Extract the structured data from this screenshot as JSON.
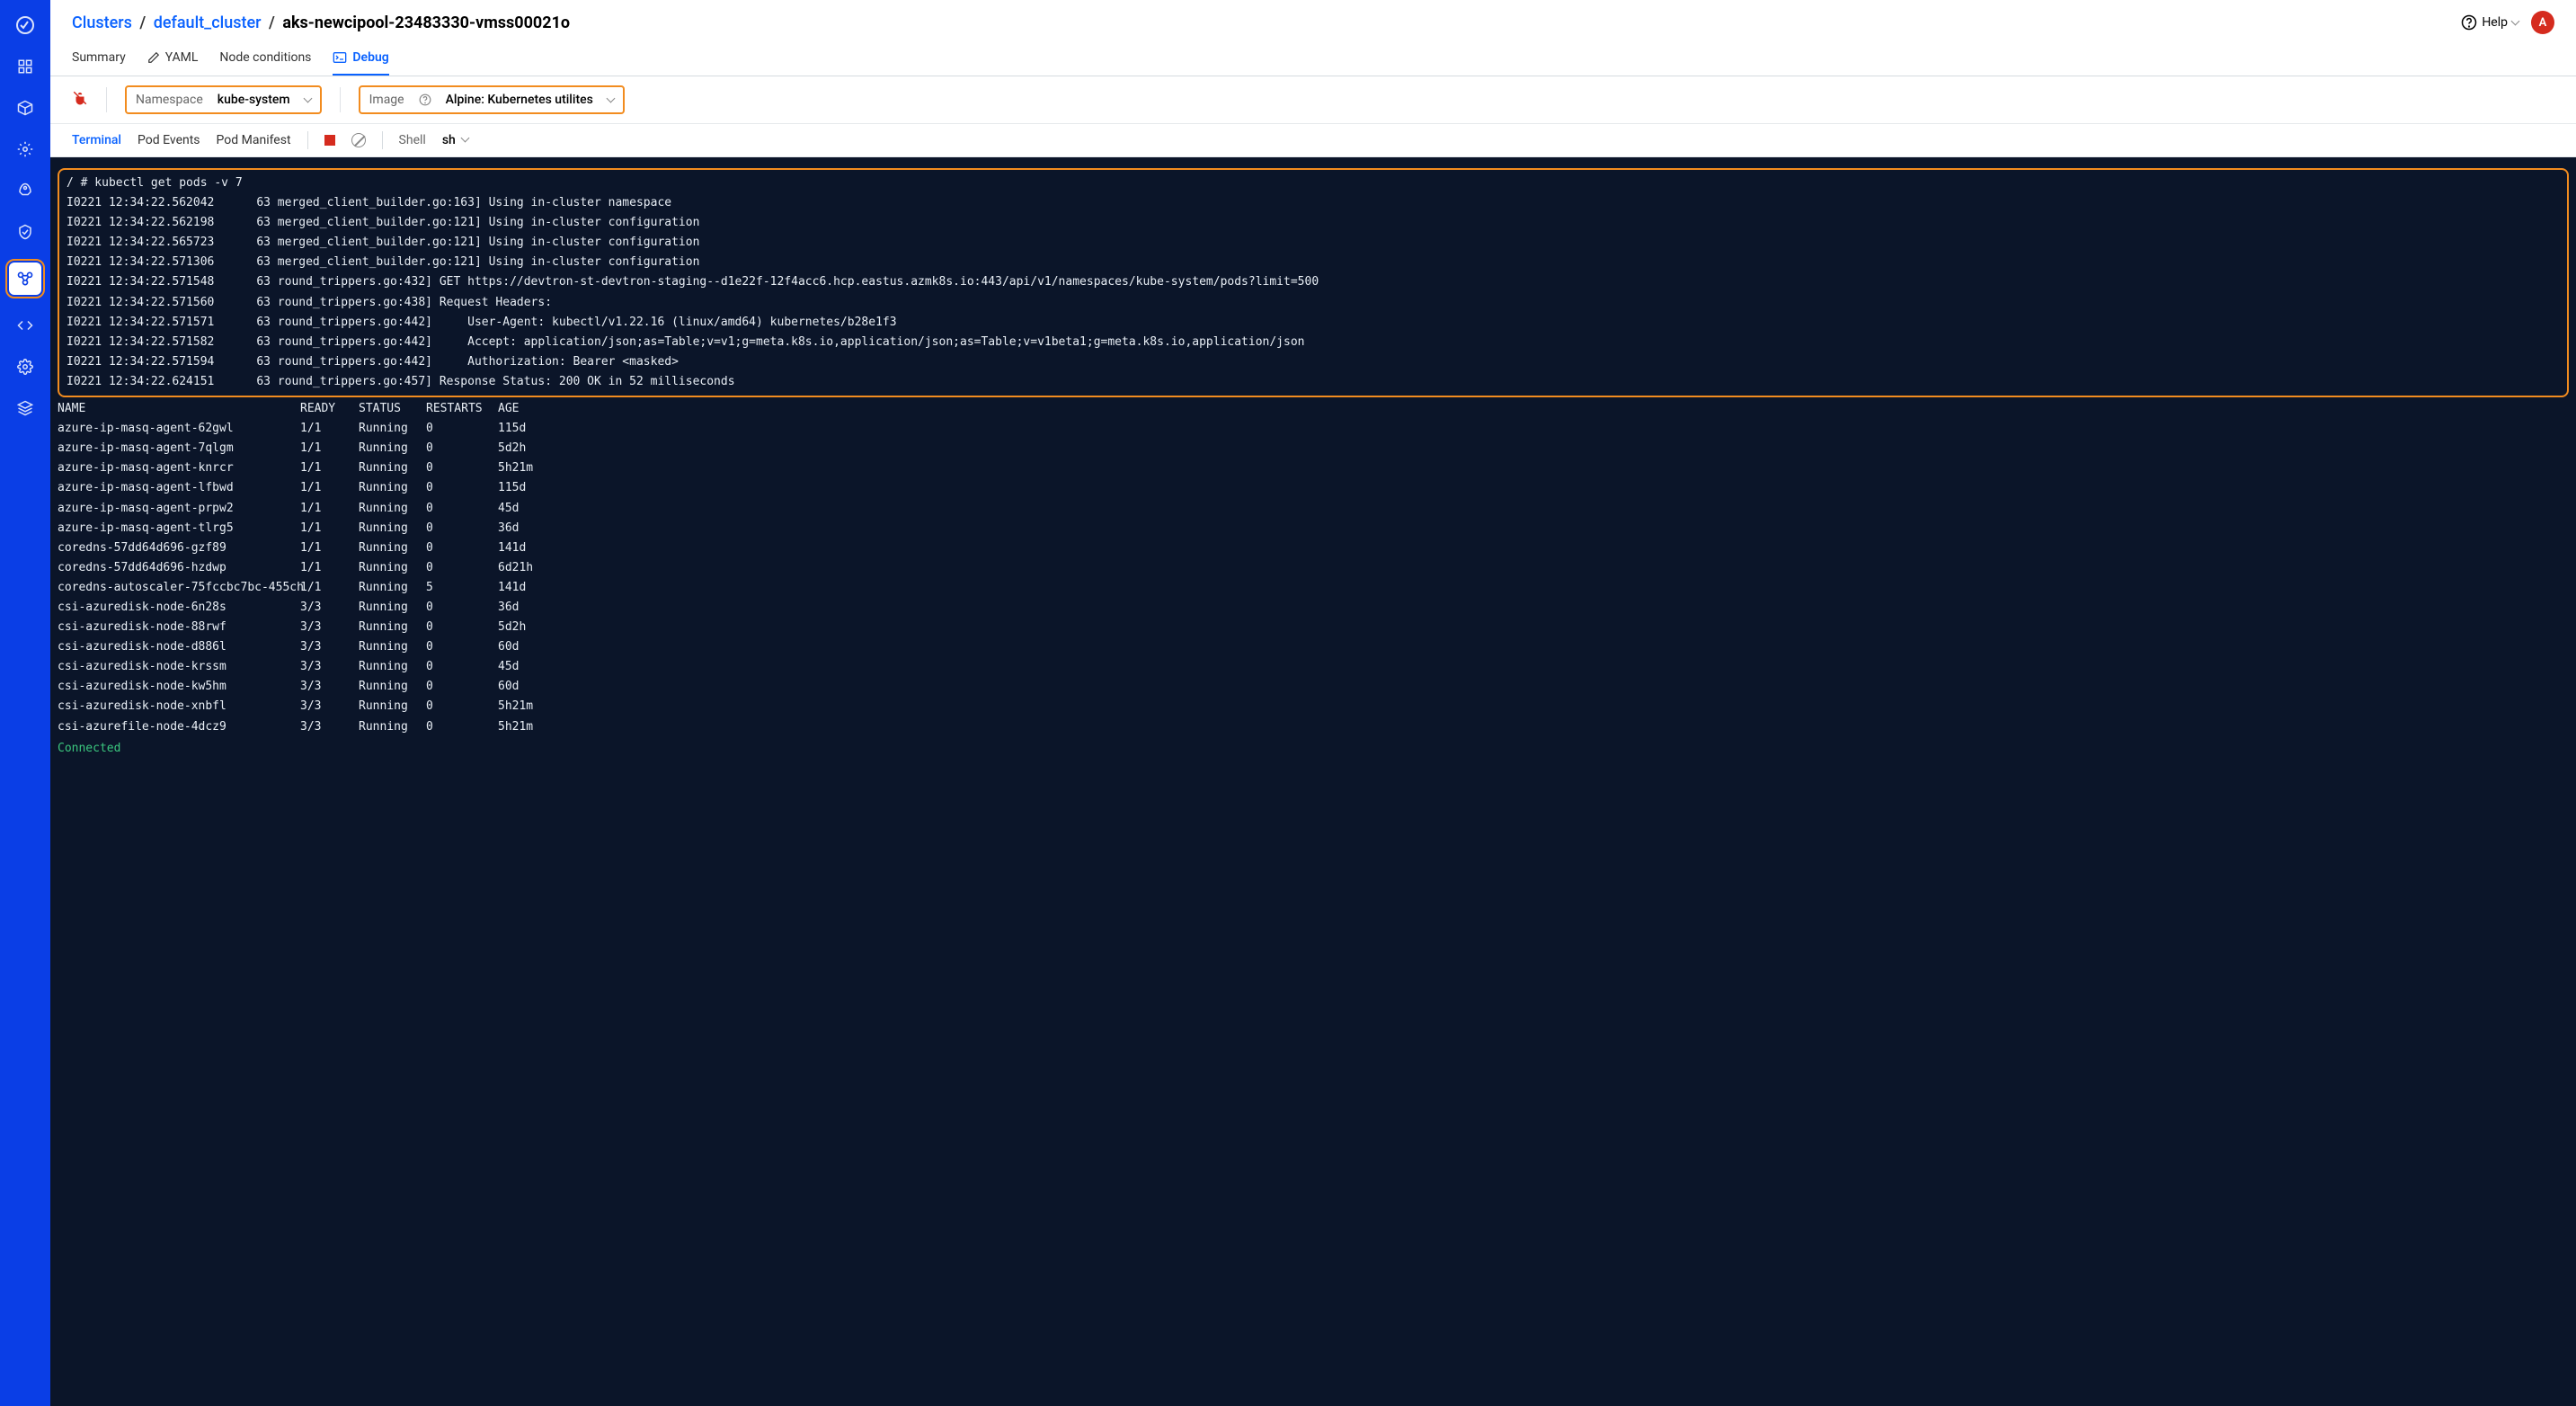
{
  "breadcrumb": {
    "clusters": "Clusters",
    "cluster_name": "default_cluster",
    "node_name": "aks-newcipool-23483330-vmss00021o"
  },
  "topbar": {
    "help_label": "Help",
    "avatar_initial": "A"
  },
  "tabs": {
    "summary": "Summary",
    "yaml": "YAML",
    "node_conditions": "Node conditions",
    "debug": "Debug"
  },
  "filters": {
    "namespace_label": "Namespace",
    "namespace_value": "kube-system",
    "image_label": "Image",
    "image_value": "Alpine: Kubernetes utilites"
  },
  "subtabs": {
    "terminal": "Terminal",
    "pod_events": "Pod Events",
    "pod_manifest": "Pod Manifest",
    "shell_label": "Shell",
    "shell_value": "sh"
  },
  "terminal": {
    "log_lines": [
      "/ # kubectl get pods -v 7",
      "I0221 12:34:22.562042      63 merged_client_builder.go:163] Using in-cluster namespace",
      "I0221 12:34:22.562198      63 merged_client_builder.go:121] Using in-cluster configuration",
      "I0221 12:34:22.565723      63 merged_client_builder.go:121] Using in-cluster configuration",
      "I0221 12:34:22.571306      63 merged_client_builder.go:121] Using in-cluster configuration",
      "I0221 12:34:22.571548      63 round_trippers.go:432] GET https://devtron-st-devtron-staging--d1e22f-12f4acc6.hcp.eastus.azmk8s.io:443/api/v1/namespaces/kube-system/pods?limit=500",
      "I0221 12:34:22.571560      63 round_trippers.go:438] Request Headers:",
      "I0221 12:34:22.571571      63 round_trippers.go:442]     User-Agent: kubectl/v1.22.16 (linux/amd64) kubernetes/b28e1f3",
      "I0221 12:34:22.571582      63 round_trippers.go:442]     Accept: application/json;as=Table;v=v1;g=meta.k8s.io,application/json;as=Table;v=v1beta1;g=meta.k8s.io,application/json",
      "I0221 12:34:22.571594      63 round_trippers.go:442]     Authorization: Bearer <masked>",
      "I0221 12:34:22.624151      63 round_trippers.go:457] Response Status: 200 OK in 52 milliseconds"
    ],
    "columns": [
      "NAME",
      "READY",
      "STATUS",
      "RESTARTS",
      "AGE"
    ],
    "pods": [
      {
        "name": "azure-ip-masq-agent-62gwl",
        "ready": "1/1",
        "status": "Running",
        "restarts": "0",
        "age": "115d"
      },
      {
        "name": "azure-ip-masq-agent-7qlgm",
        "ready": "1/1",
        "status": "Running",
        "restarts": "0",
        "age": "5d2h"
      },
      {
        "name": "azure-ip-masq-agent-knrcr",
        "ready": "1/1",
        "status": "Running",
        "restarts": "0",
        "age": "5h21m"
      },
      {
        "name": "azure-ip-masq-agent-lfbwd",
        "ready": "1/1",
        "status": "Running",
        "restarts": "0",
        "age": "115d"
      },
      {
        "name": "azure-ip-masq-agent-prpw2",
        "ready": "1/1",
        "status": "Running",
        "restarts": "0",
        "age": "45d"
      },
      {
        "name": "azure-ip-masq-agent-tlrg5",
        "ready": "1/1",
        "status": "Running",
        "restarts": "0",
        "age": "36d"
      },
      {
        "name": "coredns-57dd64d696-gzf89",
        "ready": "1/1",
        "status": "Running",
        "restarts": "0",
        "age": "141d"
      },
      {
        "name": "coredns-57dd64d696-hzdwp",
        "ready": "1/1",
        "status": "Running",
        "restarts": "0",
        "age": "6d21h"
      },
      {
        "name": "coredns-autoscaler-75fccbc7bc-455ch",
        "ready": "1/1",
        "status": "Running",
        "restarts": "5",
        "age": "141d"
      },
      {
        "name": "csi-azuredisk-node-6n28s",
        "ready": "3/3",
        "status": "Running",
        "restarts": "0",
        "age": "36d"
      },
      {
        "name": "csi-azuredisk-node-88rwf",
        "ready": "3/3",
        "status": "Running",
        "restarts": "0",
        "age": "5d2h"
      },
      {
        "name": "csi-azuredisk-node-d886l",
        "ready": "3/3",
        "status": "Running",
        "restarts": "0",
        "age": "60d"
      },
      {
        "name": "csi-azuredisk-node-krssm",
        "ready": "3/3",
        "status": "Running",
        "restarts": "0",
        "age": "45d"
      },
      {
        "name": "csi-azuredisk-node-kw5hm",
        "ready": "3/3",
        "status": "Running",
        "restarts": "0",
        "age": "60d"
      },
      {
        "name": "csi-azuredisk-node-xnbfl",
        "ready": "3/3",
        "status": "Running",
        "restarts": "0",
        "age": "5h21m"
      },
      {
        "name": "csi-azurefile-node-4dcz9",
        "ready": "3/3",
        "status": "Running",
        "restarts": "0",
        "age": "5h21m"
      }
    ],
    "connected": "Connected"
  },
  "colors": {
    "sidebar_bg": "#0a3ee6",
    "accent_blue": "#0a62ff",
    "highlight_orange": "#f28c1f",
    "avatar_red": "#d52b1e",
    "terminal_bg": "#0b1529",
    "terminal_fg": "#e8eef5",
    "connected_green": "#3bc77e"
  }
}
